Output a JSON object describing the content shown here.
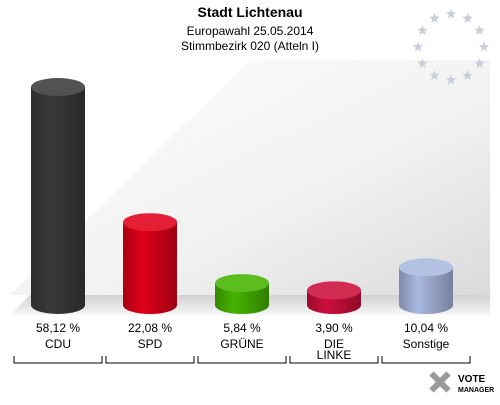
{
  "chart_data": {
    "type": "bar",
    "title": "Stadt Lichtenau",
    "subtitle": [
      "Europawahl 25.05.2014",
      "Stimmbezirk 020 (Atteln I)"
    ],
    "categories": [
      [
        "CDU"
      ],
      [
        "SPD"
      ],
      [
        "GRÜNE"
      ],
      [
        "DIE",
        "LINKE"
      ],
      [
        "Sonstige"
      ]
    ],
    "values": [
      58.12,
      22.08,
      5.84,
      3.9,
      10.04
    ],
    "value_labels": [
      "58,12 %",
      "22,08 %",
      "5,84 %",
      "3,90 %",
      "10,04 %"
    ],
    "colors": [
      "#3a3a3a",
      "#e0001a",
      "#46b400",
      "#cc0f3c",
      "#a9b8df"
    ],
    "ylim": [
      0,
      60
    ],
    "grid": false,
    "legend": "none"
  },
  "decor": {
    "eu_stars_icon": "eu-stars-icon",
    "watermark_text": [
      "VOTE",
      "MANAGER"
    ]
  }
}
